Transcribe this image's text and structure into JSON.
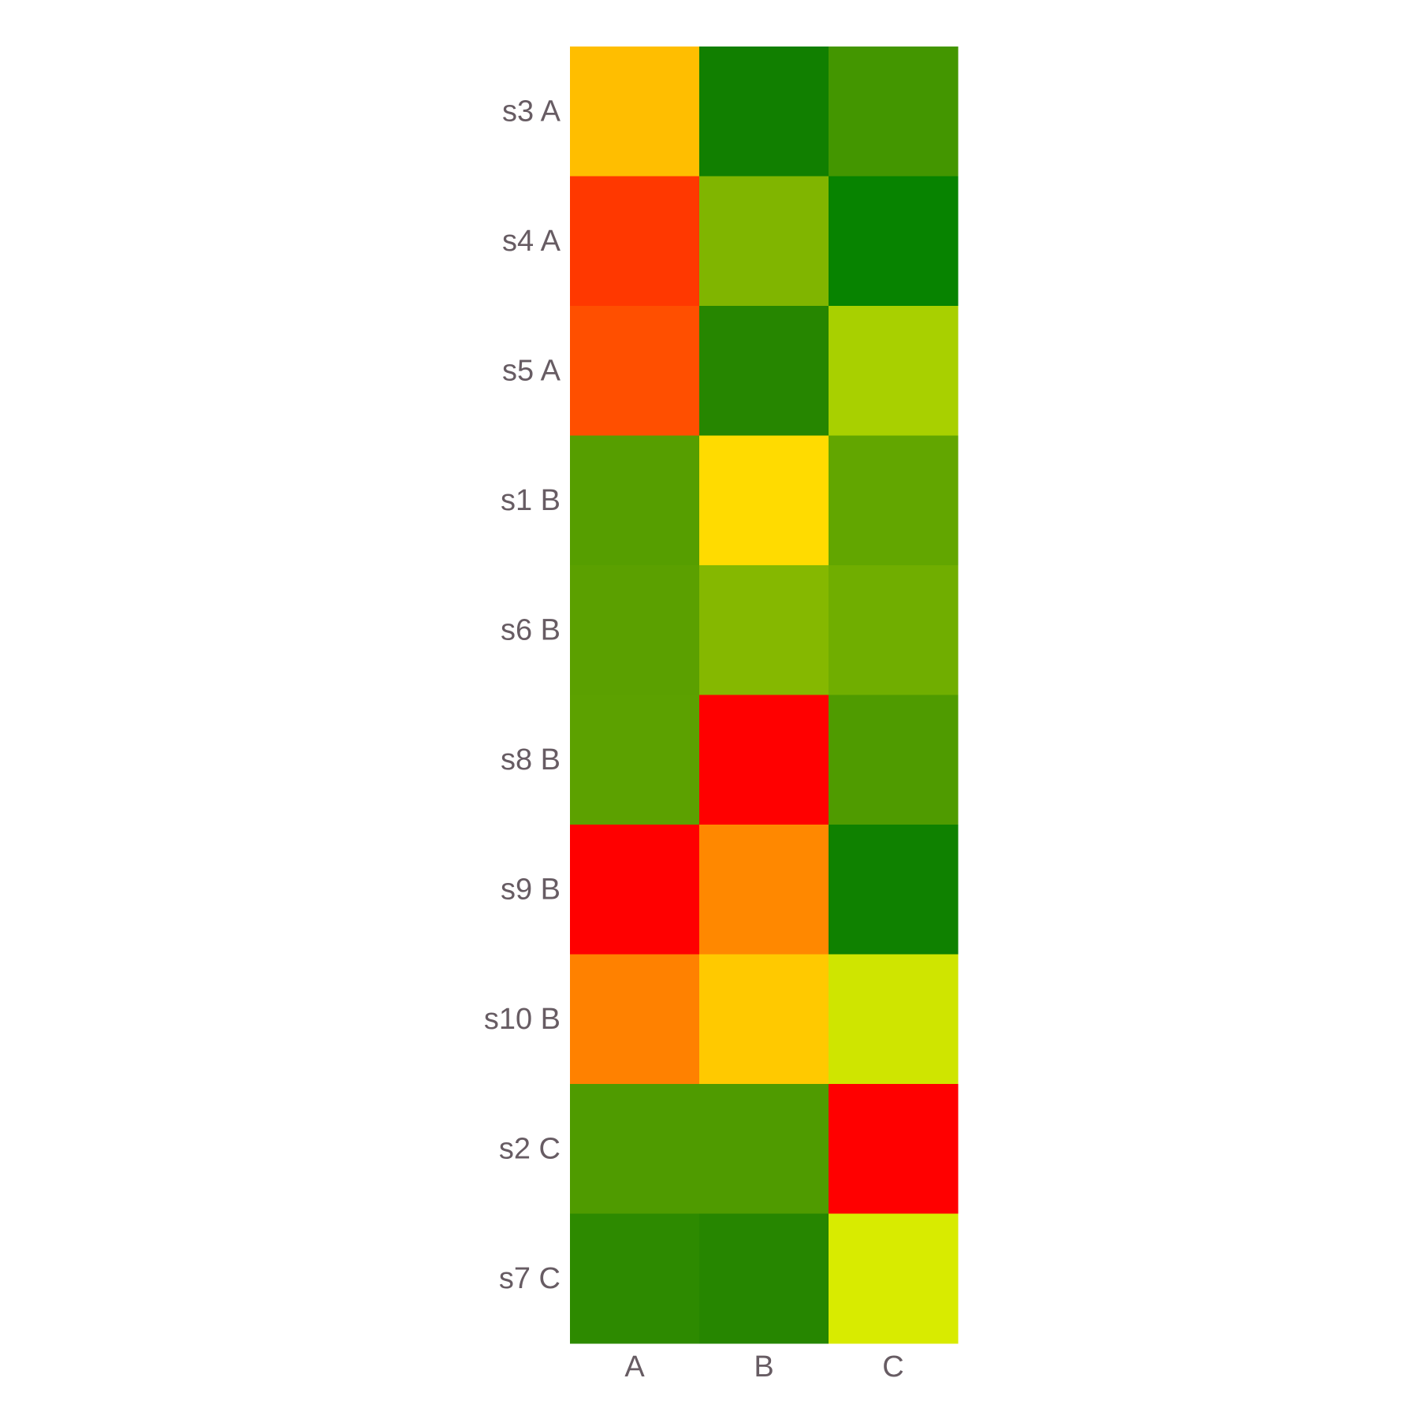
{
  "chart_data": {
    "type": "heatmap",
    "title": "",
    "xlabel": "",
    "ylabel": "",
    "x_categories": [
      "A",
      "B",
      "C"
    ],
    "y_categories": [
      "s3 A",
      "s4 A",
      "s5 A",
      "s1 B",
      "s6 B",
      "s8 B",
      "s9 B",
      "s10 B",
      "s2 C",
      "s7 C"
    ],
    "colors": [
      [
        "#ffbe00",
        "#117f00",
        "#439600"
      ],
      [
        "#ff3800",
        "#80b500",
        "#078300"
      ],
      [
        "#ff4f00",
        "#268600",
        "#a8d000"
      ],
      [
        "#569e00",
        "#ffdb00",
        "#62a600"
      ],
      [
        "#5ba000",
        "#85b800",
        "#70ae00"
      ],
      [
        "#5ca100",
        "#ff0000",
        "#4f9b00"
      ],
      [
        "#ff0000",
        "#ff8800",
        "#0f8100"
      ],
      [
        "#ff8100",
        "#ffc900",
        "#cfe500"
      ],
      [
        "#4f9b00",
        "#4f9b00",
        "#ff0000"
      ],
      [
        "#2d8a00",
        "#268600",
        "#d8eb00"
      ]
    ],
    "text_color": "#675c63",
    "grid": false,
    "legend": "none"
  }
}
